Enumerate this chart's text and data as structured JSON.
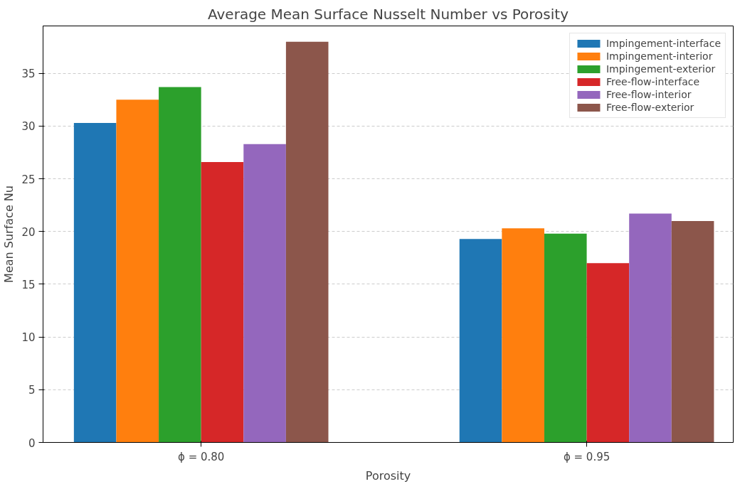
{
  "chart_data": {
    "type": "bar",
    "title": "Average Mean Surface Nusselt Number vs Porosity",
    "xlabel": "Porosity",
    "ylabel": "Mean Surface Nu",
    "categories": [
      "ϕ = 0.80",
      "ϕ = 0.95"
    ],
    "series": [
      {
        "name": "Impingement-interface",
        "color": "#1f77b4",
        "values": [
          30.3,
          19.3
        ]
      },
      {
        "name": "Impingement-interior",
        "color": "#ff7f0e",
        "values": [
          32.5,
          20.3
        ]
      },
      {
        "name": "Impingement-exterior",
        "color": "#2ca02c",
        "values": [
          33.7,
          19.8
        ]
      },
      {
        "name": "Free-flow-interface",
        "color": "#d62728",
        "values": [
          26.6,
          17.0
        ]
      },
      {
        "name": "Free-flow-interior",
        "color": "#9467bd",
        "values": [
          28.3,
          21.7
        ]
      },
      {
        "name": "Free-flow-exterior",
        "color": "#8c564b",
        "values": [
          38.0,
          21.0
        ]
      }
    ],
    "ylim": [
      0,
      39.5
    ],
    "yticks": [
      0,
      5,
      10,
      15,
      20,
      25,
      30,
      35
    ],
    "grid": "y",
    "legend": "top right"
  }
}
